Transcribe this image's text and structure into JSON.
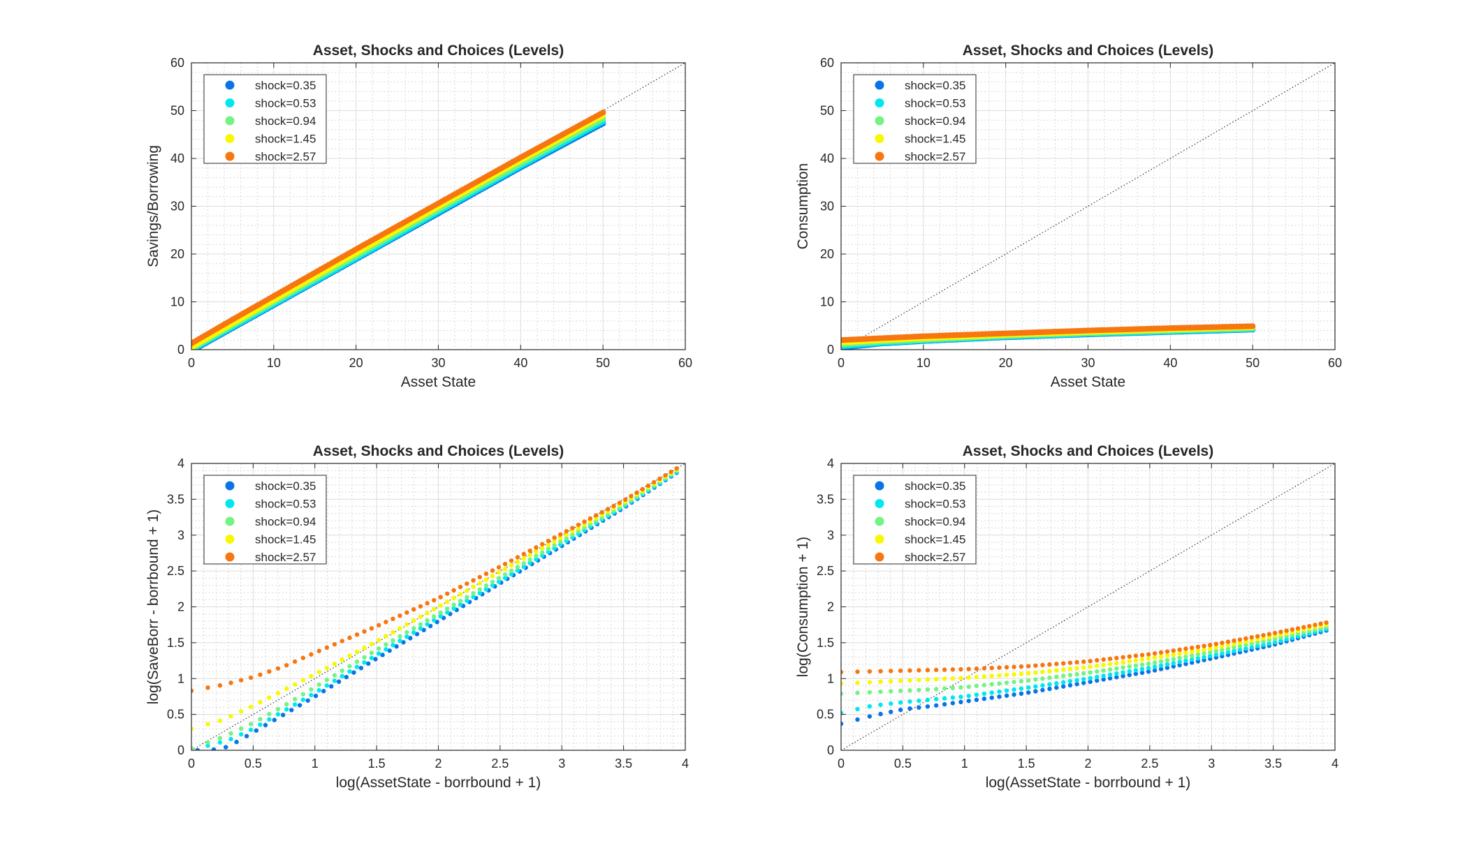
{
  "chart_data": [
    {
      "type": "scatter",
      "title": "Asset, Shocks and Choices (Levels)",
      "xlabel": "Asset State",
      "ylabel": "Savings/Borrowing",
      "xlim": [
        0,
        60
      ],
      "ylim": [
        0,
        60
      ],
      "xticks": [
        "0",
        "10",
        "20",
        "30",
        "40",
        "50",
        "60"
      ],
      "yticks": [
        "0",
        "10",
        "20",
        "30",
        "40",
        "50",
        "60"
      ],
      "grid": true,
      "minor_grid": true,
      "legend_position": "top-left",
      "reference_line": {
        "style": "dotted",
        "from": [
          0,
          0
        ],
        "to": [
          60,
          60
        ]
      },
      "series": [
        {
          "name": "shock=0.35",
          "color": "#0a73e6",
          "x": [
            0,
            5,
            10,
            20,
            30,
            40,
            50
          ],
          "y": [
            -0.3,
            4.5,
            9.3,
            18.9,
            28.5,
            38.1,
            47.3
          ]
        },
        {
          "name": "shock=0.53",
          "color": "#00e8ee",
          "x": [
            0,
            5,
            10,
            20,
            30,
            40,
            50
          ],
          "y": [
            -0.1,
            4.7,
            9.5,
            19.1,
            28.8,
            38.4,
            47.7
          ]
        },
        {
          "name": "shock=0.94",
          "color": "#74f383",
          "x": [
            0,
            5,
            10,
            20,
            30,
            40,
            50
          ],
          "y": [
            0.2,
            5.1,
            9.9,
            19.6,
            29.3,
            38.9,
            48.3
          ]
        },
        {
          "name": "shock=1.45",
          "color": "#f8f800",
          "x": [
            0,
            5,
            10,
            20,
            30,
            40,
            50
          ],
          "y": [
            0.5,
            5.5,
            10.4,
            20.2,
            29.9,
            39.6,
            49.0
          ]
        },
        {
          "name": "shock=2.57",
          "color": "#f7760f",
          "x": [
            0,
            5,
            10,
            20,
            30,
            40,
            50
          ],
          "y": [
            1.3,
            6.3,
            11.2,
            21.0,
            30.6,
            40.2,
            49.6
          ]
        }
      ]
    },
    {
      "type": "scatter",
      "title": "Asset, Shocks and Choices (Levels)",
      "xlabel": "Asset State",
      "ylabel": "Consumption",
      "xlim": [
        0,
        60
      ],
      "ylim": [
        0,
        60
      ],
      "xticks": [
        "0",
        "10",
        "20",
        "30",
        "40",
        "50",
        "60"
      ],
      "yticks": [
        "0",
        "10",
        "20",
        "30",
        "40",
        "50",
        "60"
      ],
      "grid": true,
      "minor_grid": true,
      "legend_position": "top-left",
      "reference_line": {
        "style": "dotted",
        "from": [
          0,
          0
        ],
        "to": [
          60,
          60
        ]
      },
      "series": [
        {
          "name": "shock=0.35",
          "color": "#0a73e6",
          "x": [
            0,
            5,
            10,
            20,
            30,
            40,
            50
          ],
          "y": [
            0.4,
            1.3,
            1.8,
            2.6,
            3.2,
            3.7,
            4.2
          ]
        },
        {
          "name": "shock=0.53",
          "color": "#00e8ee",
          "x": [
            0,
            5,
            10,
            20,
            30,
            40,
            50
          ],
          "y": [
            0.7,
            1.4,
            1.9,
            2.7,
            3.3,
            3.8,
            4.3
          ]
        },
        {
          "name": "shock=0.94",
          "color": "#74f383",
          "x": [
            0,
            5,
            10,
            20,
            30,
            40,
            50
          ],
          "y": [
            1.1,
            1.7,
            2.1,
            2.9,
            3.5,
            4.0,
            4.5
          ]
        },
        {
          "name": "shock=1.45",
          "color": "#f8f800",
          "x": [
            0,
            5,
            10,
            20,
            30,
            40,
            50
          ],
          "y": [
            1.5,
            2.0,
            2.4,
            3.1,
            3.7,
            4.2,
            4.7
          ]
        },
        {
          "name": "shock=2.57",
          "color": "#f7760f",
          "x": [
            0,
            5,
            10,
            20,
            30,
            40,
            50
          ],
          "y": [
            2.0,
            2.4,
            2.8,
            3.4,
            4.0,
            4.5,
            4.9
          ]
        }
      ]
    },
    {
      "type": "scatter",
      "title": "Asset, Shocks and Choices (Levels)",
      "xlabel": "log(AssetState - borrbound + 1)",
      "ylabel": "log(SaveBorr - borrbound + 1)",
      "xlim": [
        0,
        4
      ],
      "ylim": [
        0,
        4
      ],
      "xticks": [
        "0",
        "0.5",
        "1",
        "1.5",
        "2",
        "2.5",
        "3",
        "3.5",
        "4"
      ],
      "yticks": [
        "0",
        "0.5",
        "1",
        "1.5",
        "2",
        "2.5",
        "3",
        "3.5",
        "4"
      ],
      "grid": true,
      "minor_grid": true,
      "legend_position": "top-left",
      "reference_line": {
        "style": "dotted",
        "from": [
          0,
          0
        ],
        "to": [
          4,
          4
        ]
      },
      "series": [
        {
          "name": "shock=0.35",
          "color": "#0a73e6",
          "x": [
            0.05,
            0.15,
            0.3,
            0.5,
            0.75,
            1.0,
            1.5,
            2.0,
            2.5,
            3.0,
            3.5,
            3.93
          ],
          "y": [
            0.0,
            0.0,
            0.05,
            0.25,
            0.5,
            0.75,
            1.28,
            1.8,
            2.33,
            2.85,
            3.38,
            3.87
          ]
        },
        {
          "name": "shock=0.53",
          "color": "#00e8ee",
          "x": [
            0.0,
            0.1,
            0.3,
            0.5,
            0.75,
            1.0,
            1.5,
            2.0,
            2.5,
            3.0,
            3.5,
            3.93
          ],
          "y": [
            0.02,
            0.05,
            0.14,
            0.3,
            0.55,
            0.8,
            1.33,
            1.85,
            2.36,
            2.88,
            3.4,
            3.88
          ]
        },
        {
          "name": "shock=0.94",
          "color": "#74f383",
          "x": [
            0.0,
            0.25,
            0.5,
            0.75,
            1.0,
            1.5,
            2.0,
            2.5,
            3.0,
            3.5,
            3.93
          ],
          "y": [
            0.03,
            0.18,
            0.38,
            0.62,
            0.88,
            1.4,
            1.9,
            2.41,
            2.92,
            3.42,
            3.9
          ]
        },
        {
          "name": "shock=1.45",
          "color": "#f8f800",
          "x": [
            0.0,
            0.25,
            0.5,
            0.75,
            1.0,
            1.5,
            2.0,
            2.5,
            3.0,
            3.5,
            3.93
          ],
          "y": [
            0.3,
            0.42,
            0.62,
            0.84,
            1.06,
            1.52,
            2.0,
            2.49,
            2.97,
            3.45,
            3.91
          ]
        },
        {
          "name": "shock=2.57",
          "color": "#f7760f",
          "x": [
            0.0,
            0.25,
            0.5,
            0.75,
            1.0,
            1.5,
            2.0,
            2.5,
            3.0,
            3.5,
            3.93
          ],
          "y": [
            0.83,
            0.91,
            1.02,
            1.17,
            1.36,
            1.73,
            2.12,
            2.56,
            3.02,
            3.48,
            3.93
          ]
        }
      ]
    },
    {
      "type": "scatter",
      "title": "Asset, Shocks and Choices (Levels)",
      "xlabel": "log(AssetState - borrbound + 1)",
      "ylabel": "log(Consumption + 1)",
      "xlim": [
        0,
        4
      ],
      "ylim": [
        0,
        4
      ],
      "xticks": [
        "0",
        "0.5",
        "1",
        "1.5",
        "2",
        "2.5",
        "3",
        "3.5",
        "4"
      ],
      "yticks": [
        "0",
        "0.5",
        "1",
        "1.5",
        "2",
        "2.5",
        "3",
        "3.5",
        "4"
      ],
      "grid": true,
      "minor_grid": true,
      "legend_position": "top-left",
      "reference_line": {
        "style": "dotted",
        "from": [
          0,
          0
        ],
        "to": [
          4,
          4
        ]
      },
      "series": [
        {
          "name": "shock=0.35",
          "color": "#0a73e6",
          "x": [
            0.0,
            0.25,
            0.5,
            0.75,
            1.0,
            1.5,
            2.0,
            2.5,
            3.0,
            3.5,
            3.93
          ],
          "y": [
            0.37,
            0.48,
            0.57,
            0.62,
            0.68,
            0.8,
            0.95,
            1.1,
            1.28,
            1.47,
            1.67
          ]
        },
        {
          "name": "shock=0.53",
          "color": "#00e8ee",
          "x": [
            0.0,
            0.25,
            0.5,
            0.75,
            1.0,
            1.5,
            2.0,
            2.5,
            3.0,
            3.5,
            3.93
          ],
          "y": [
            0.52,
            0.62,
            0.67,
            0.71,
            0.75,
            0.87,
            1.0,
            1.15,
            1.32,
            1.5,
            1.69
          ]
        },
        {
          "name": "shock=0.94",
          "color": "#74f383",
          "x": [
            0.0,
            0.25,
            0.5,
            0.75,
            1.0,
            1.5,
            2.0,
            2.5,
            3.0,
            3.5,
            3.93
          ],
          "y": [
            0.79,
            0.81,
            0.83,
            0.85,
            0.88,
            0.97,
            1.08,
            1.21,
            1.37,
            1.55,
            1.72
          ]
        },
        {
          "name": "shock=1.45",
          "color": "#f8f800",
          "x": [
            0.0,
            0.25,
            0.5,
            0.75,
            1.0,
            1.5,
            2.0,
            2.5,
            3.0,
            3.5,
            3.93
          ],
          "y": [
            0.93,
            0.95,
            0.97,
            0.99,
            1.01,
            1.07,
            1.16,
            1.28,
            1.42,
            1.59,
            1.75
          ]
        },
        {
          "name": "shock=2.57",
          "color": "#f7760f",
          "x": [
            0.0,
            0.25,
            0.5,
            0.75,
            1.0,
            1.5,
            2.0,
            2.5,
            3.0,
            3.5,
            3.93
          ],
          "y": [
            1.09,
            1.1,
            1.11,
            1.12,
            1.13,
            1.17,
            1.24,
            1.34,
            1.47,
            1.63,
            1.78
          ]
        }
      ]
    }
  ]
}
